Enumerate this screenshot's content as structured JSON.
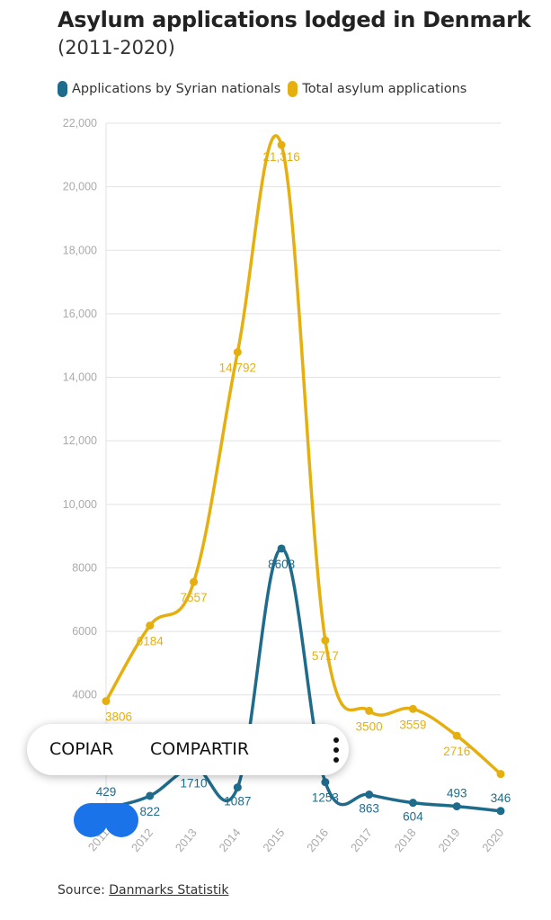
{
  "chart_data": {
    "type": "line",
    "title": "Asylum applications lodged in Denmark",
    "subtitle": "(2011-2020)",
    "x": [
      "2011",
      "2012",
      "2013",
      "2014",
      "2015",
      "2016",
      "2017",
      "2018",
      "2019",
      "2020"
    ],
    "series": [
      {
        "name": "Applications by Syrian nationals",
        "color": "#1f6b8c",
        "values": [
          429,
          822,
          1710,
          1087,
          8608,
          1253,
          863,
          604,
          493,
          346
        ],
        "labels": [
          "429",
          "822",
          "1710",
          "1087",
          "8608",
          "1253",
          "863",
          "604",
          "493",
          "346"
        ]
      },
      {
        "name": "Total asylum applications",
        "color": "#e5b00f",
        "values": [
          3806,
          6184,
          7557,
          14792,
          21316,
          5717,
          3500,
          3559,
          2716,
          1510
        ],
        "labels": [
          "3806",
          "6184",
          "7557",
          "14,792",
          "21,316",
          "5717",
          "3500",
          "3559",
          "2716",
          ""
        ]
      }
    ],
    "ylim": [
      0,
      22000
    ],
    "yticks": [
      4000,
      6000,
      8000,
      10000,
      12000,
      14000,
      16000,
      18000,
      20000,
      22000
    ],
    "ytick_labels": [
      "4000",
      "6000",
      "8000",
      "10,000",
      "12,000",
      "14,000",
      "16,000",
      "18,000",
      "20,000",
      "22,000"
    ],
    "grid": true,
    "legend": "top-left",
    "xlabel": "",
    "ylabel": ""
  },
  "source": {
    "prefix": "Source: ",
    "link": "Danmarks Statistik"
  },
  "popup": {
    "copy": "COPIAR",
    "share": "COMPARTIR",
    "more_icon": "more-vertical-icon"
  },
  "handles": {
    "icon": "selection-handle-icon",
    "color": "#1a73e8"
  }
}
